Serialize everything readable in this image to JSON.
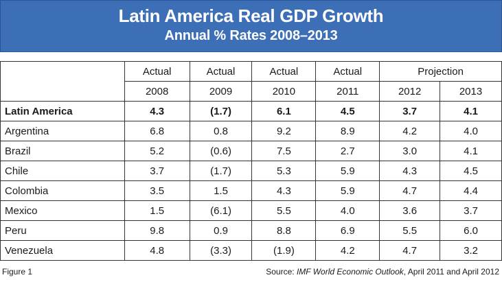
{
  "chart_data": {
    "type": "table",
    "title": "Latin America Real GDP Growth",
    "subtitle": "Annual % Rates 2008–2013",
    "header_groups": [
      "Actual",
      "Actual",
      "Actual",
      "Actual",
      "Projection"
    ],
    "years": [
      "2008",
      "2009",
      "2010",
      "2011",
      "2012",
      "2013"
    ],
    "rows": [
      {
        "name": "Latin America",
        "values": [
          "4.3",
          "(1.7)",
          "6.1",
          "4.5",
          "3.7",
          "4.1"
        ]
      },
      {
        "name": "Argentina",
        "values": [
          "6.8",
          "0.8",
          "9.2",
          "8.9",
          "4.2",
          "4.0"
        ]
      },
      {
        "name": "Brazil",
        "values": [
          "5.2",
          "(0.6)",
          "7.5",
          "2.7",
          "3.0",
          "4.1"
        ]
      },
      {
        "name": "Chile",
        "values": [
          "3.7",
          "(1.7)",
          "5.3",
          "5.9",
          "4.3",
          "4.5"
        ]
      },
      {
        "name": "Colombia",
        "values": [
          "3.5",
          "1.5",
          "4.3",
          "5.9",
          "4.7",
          "4.4"
        ]
      },
      {
        "name": "Mexico",
        "values": [
          "1.5",
          "(6.1)",
          "5.5",
          "4.0",
          "3.6",
          "3.7"
        ]
      },
      {
        "name": "Peru",
        "values": [
          "9.8",
          "0.9",
          "8.8",
          "6.9",
          "5.5",
          "6.0"
        ]
      },
      {
        "name": "Venezuela",
        "values": [
          "4.8",
          "(3.3)",
          "(1.9)",
          "4.2",
          "4.7",
          "3.2"
        ]
      }
    ]
  },
  "footer": {
    "figure": "Figure 1",
    "source_prefix": "Source: ",
    "source_italic": "IMF World Economic Outlook",
    "source_suffix": ", April 2011 and April 2012"
  },
  "colors": {
    "banner": "#3d6fb6"
  }
}
